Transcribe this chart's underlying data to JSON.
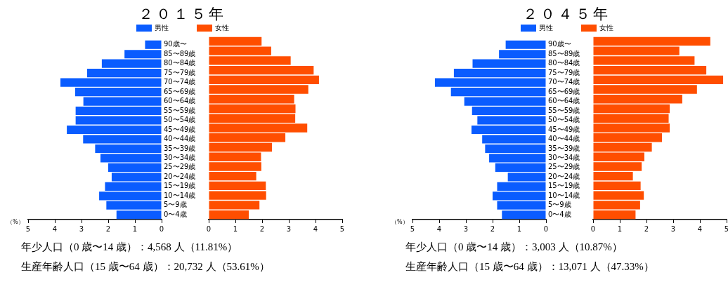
{
  "chart_data": [
    {
      "type": "bar",
      "orientation": "horizontal",
      "title": "２０１５年",
      "xlabel": "（%）",
      "categories": [
        "90歳〜",
        "85〜89歳",
        "80〜84歳",
        "75〜79歳",
        "70〜74歳",
        "65〜69歳",
        "60〜64歳",
        "55〜59歳",
        "50〜54歳",
        "45〜49歳",
        "40〜44歳",
        "35〜39歳",
        "30〜34歳",
        "25〜29歳",
        "20〜24歳",
        "15〜19歳",
        "10〜14歳",
        "5〜9歳",
        "0〜4歳"
      ],
      "series": [
        {
          "name": "男性",
          "color": "#0a5cff",
          "values": [
            0.62,
            1.39,
            2.24,
            2.79,
            3.79,
            3.24,
            2.93,
            3.22,
            3.22,
            3.55,
            2.94,
            2.49,
            2.29,
            2.0,
            1.87,
            2.12,
            2.34,
            2.07,
            1.69
          ]
        }
      ],
      "xlim": [
        5,
        0
      ],
      "xticks": [
        5,
        4,
        3,
        2,
        1,
        0
      ],
      "legend": "top",
      "grid": false,
      "annotations": [
        "年少人口（0 歳〜14 歳）：4,568 人（11.81%）",
        "生産年齢人口（15 歳〜64 歳）：20,732 人（53.61%）"
      ]
    },
    {
      "type": "bar",
      "orientation": "horizontal",
      "tick_labels": "x",
      "categories": [
        null,
        null,
        null,
        null,
        null,
        null,
        null,
        null,
        null,
        null,
        null,
        null,
        null,
        null,
        null,
        null,
        null,
        null,
        null
      ],
      "series": [
        {
          "name": "女性",
          "color": "#ff4e00",
          "values": [
            1.98,
            2.34,
            3.07,
            3.93,
            4.13,
            3.73,
            3.2,
            3.25,
            3.24,
            3.69,
            2.87,
            2.37,
            1.96,
            1.97,
            1.78,
            2.14,
            2.15,
            1.9,
            1.5
          ]
        }
      ],
      "xlim": [
        0,
        5
      ],
      "xticks": [
        0,
        1,
        2,
        3,
        4,
        5
      ],
      "legend": "top",
      "grid": false
    },
    {
      "type": "bar",
      "orientation": "horizontal",
      "title": "２０４５年",
      "xlabel": "（%）",
      "categories": [
        "90歳〜",
        "85〜89歳",
        "80〜84歳",
        "75〜79歳",
        "70〜74歳",
        "65〜69歳",
        "60〜64歳",
        "55〜59歳",
        "50〜54歳",
        "45〜49歳",
        "40〜44歳",
        "35〜39歳",
        "30〜34歳",
        "25〜29歳",
        "20〜24歳",
        "15〜19歳",
        "10〜14歳",
        "5〜9歳",
        "0〜4歳"
      ],
      "series": [
        {
          "name": "男性",
          "color": "#0a5cff",
          "values": [
            1.51,
            1.76,
            2.75,
            3.45,
            4.16,
            3.56,
            3.06,
            2.77,
            2.57,
            2.79,
            2.39,
            2.28,
            2.13,
            1.9,
            1.43,
            1.83,
            2.0,
            1.83,
            1.65
          ]
        }
      ],
      "xlim": [
        5,
        0
      ],
      "xticks": [
        5,
        4,
        3,
        2,
        1,
        0
      ],
      "legend": "top",
      "grid": false,
      "annotations": [
        "年少人口（0 歳〜14 歳）：3,003 人（10.87%）",
        "生産年齢人口（15 歳〜64 歳）：13,071 人（47.33%）"
      ]
    },
    {
      "type": "bar",
      "orientation": "horizontal",
      "tick_labels": "x",
      "categories": [
        null,
        null,
        null,
        null,
        null,
        null,
        null,
        null,
        null,
        null,
        null,
        null,
        null,
        null,
        null,
        null,
        null,
        null,
        null
      ],
      "series": [
        {
          "name": "女性",
          "color": "#ff4e00",
          "values": [
            4.39,
            3.23,
            3.8,
            4.24,
            4.87,
            3.89,
            3.34,
            2.87,
            2.83,
            2.87,
            2.58,
            2.2,
            1.92,
            1.82,
            1.49,
            1.78,
            1.9,
            1.76,
            1.59
          ]
        }
      ],
      "xlim": [
        0,
        5
      ],
      "xticks": [
        0,
        1,
        2,
        3,
        4,
        5
      ],
      "legend": "top",
      "grid": false
    }
  ]
}
